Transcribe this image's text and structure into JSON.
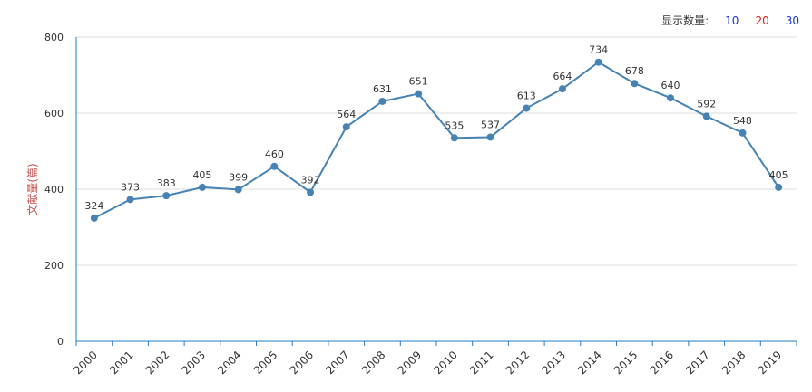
{
  "controls": {
    "label": "显示数量:",
    "options": [
      "10",
      "20",
      "30"
    ],
    "option_colors": [
      "#1a33cc",
      "#e0201a",
      "#1a33cc"
    ]
  },
  "chart_data": {
    "type": "line",
    "title": "",
    "xlabel": "",
    "ylabel": "文献量(篇)",
    "categories": [
      "2000",
      "2001",
      "2002",
      "2003",
      "2004",
      "2005",
      "2006",
      "2007",
      "2008",
      "2009",
      "2010",
      "2011",
      "2012",
      "2013",
      "2014",
      "2015",
      "2016",
      "2017",
      "2018",
      "2019"
    ],
    "values": [
      324,
      373,
      383,
      405,
      399,
      460,
      392,
      564,
      631,
      651,
      535,
      537,
      613,
      664,
      734,
      678,
      640,
      592,
      548,
      405
    ],
    "ylim": [
      0,
      800
    ],
    "yticks": [
      0,
      200,
      400,
      600,
      800
    ],
    "grid": true,
    "line_color": "#4682b4",
    "axis_color": "#2a7cc2"
  }
}
